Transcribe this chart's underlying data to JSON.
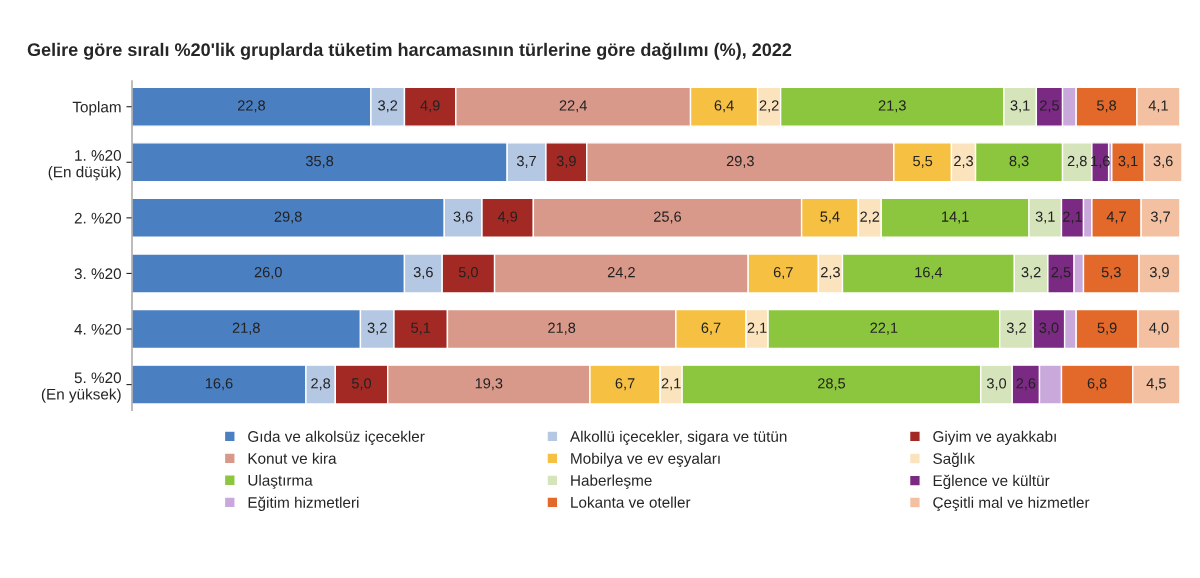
{
  "chart_data": {
    "type": "bar",
    "orientation": "horizontal",
    "stacked": true,
    "title": "Gelire göre sıralı %20'lik gruplarda tüketim harcamasının türlerine göre dağılımı (%), 2022",
    "categories": [
      "Toplam",
      "1. %20\n(En düşük)",
      "2. %20",
      "3. %20",
      "4. %20",
      "5. %20\n(En yüksek)"
    ],
    "series": [
      {
        "name": "Gıda ve alkolsüz içecekler",
        "color": "#4a7fc1",
        "values": [
          22.8,
          35.8,
          29.8,
          26.0,
          21.8,
          16.6
        ],
        "value_labels": [
          "22,8",
          "35,8",
          "29,8",
          "26,0",
          "21,8",
          "16,6"
        ]
      },
      {
        "name": "Alkollü içecekler, sigara ve tütün",
        "color": "#b4c8e4",
        "values": [
          3.2,
          3.7,
          3.6,
          3.6,
          3.2,
          2.8
        ],
        "value_labels": [
          "3,2",
          "3,7",
          "3,6",
          "3,6",
          "3,2",
          "2,8"
        ]
      },
      {
        "name": "Giyim ve ayakkabı",
        "color": "#a32a24",
        "values": [
          4.9,
          3.9,
          4.9,
          5.0,
          5.1,
          5.0
        ],
        "value_labels": [
          "4,9",
          "3,9",
          "4,9",
          "5,0",
          "5,1",
          "5,0"
        ]
      },
      {
        "name": "Konut ve kira",
        "color": "#d9998a",
        "values": [
          22.4,
          29.3,
          25.6,
          24.2,
          21.8,
          19.3
        ],
        "value_labels": [
          "22,4",
          "29,3",
          "25,6",
          "24,2",
          "21,8",
          "19,3"
        ]
      },
      {
        "name": "Mobilya ve ev eşyaları",
        "color": "#f6c143",
        "values": [
          6.4,
          5.5,
          5.4,
          6.7,
          6.7,
          6.7
        ],
        "value_labels": [
          "6,4",
          "5,5",
          "5,4",
          "6,7",
          "6,7",
          "6,7"
        ]
      },
      {
        "name": "Sağlık",
        "color": "#fbe3bd",
        "values": [
          2.2,
          2.3,
          2.2,
          2.3,
          2.1,
          2.1
        ],
        "value_labels": [
          "2,2",
          "2,3",
          "2,2",
          "2,3",
          "2,1",
          "2,1"
        ]
      },
      {
        "name": "Ulaştırma",
        "color": "#8cc63e",
        "values": [
          21.3,
          8.3,
          14.1,
          16.4,
          22.1,
          28.5
        ],
        "value_labels": [
          "21,3",
          "8,3",
          "14,1",
          "16,4",
          "22,1",
          "28,5"
        ]
      },
      {
        "name": "Haberleşme",
        "color": "#d6e4bc",
        "values": [
          3.1,
          2.8,
          3.1,
          3.2,
          3.2,
          3.0
        ],
        "value_labels": [
          "3,1",
          "2,8",
          "3,1",
          "3,2",
          "3,2",
          "3,0"
        ]
      },
      {
        "name": "Eğlence ve kültür",
        "color": "#7a2a82",
        "values": [
          2.5,
          1.6,
          2.1,
          2.5,
          3.0,
          2.6
        ],
        "value_labels": [
          "2,5",
          "1,6",
          "2,1",
          "2,5",
          "3,0",
          "2,6"
        ]
      },
      {
        "name": "Eğitim hizmetleri",
        "color": "#c9a8dc",
        "values": [
          1.3,
          0.3,
          0.8,
          0.9,
          1.1,
          2.1
        ],
        "value_labels": [
          null,
          null,
          null,
          null,
          null,
          null
        ]
      },
      {
        "name": "Lokanta ve oteller",
        "color": "#e2692a",
        "values": [
          5.8,
          3.1,
          4.7,
          5.3,
          5.9,
          6.8
        ],
        "value_labels": [
          "5,8",
          "3,1",
          "4,7",
          "5,3",
          "5,9",
          "6,8"
        ]
      },
      {
        "name": "Çeşitli mal ve hizmetler",
        "color": "#f3c1a2",
        "values": [
          4.1,
          3.6,
          3.7,
          3.9,
          4.0,
          4.5
        ],
        "value_labels": [
          "4,1",
          "3,6",
          "3,7",
          "3,9",
          "4,0",
          "4,5"
        ]
      }
    ],
    "legend": "bottom",
    "tick_labels": "y",
    "grid": false
  }
}
